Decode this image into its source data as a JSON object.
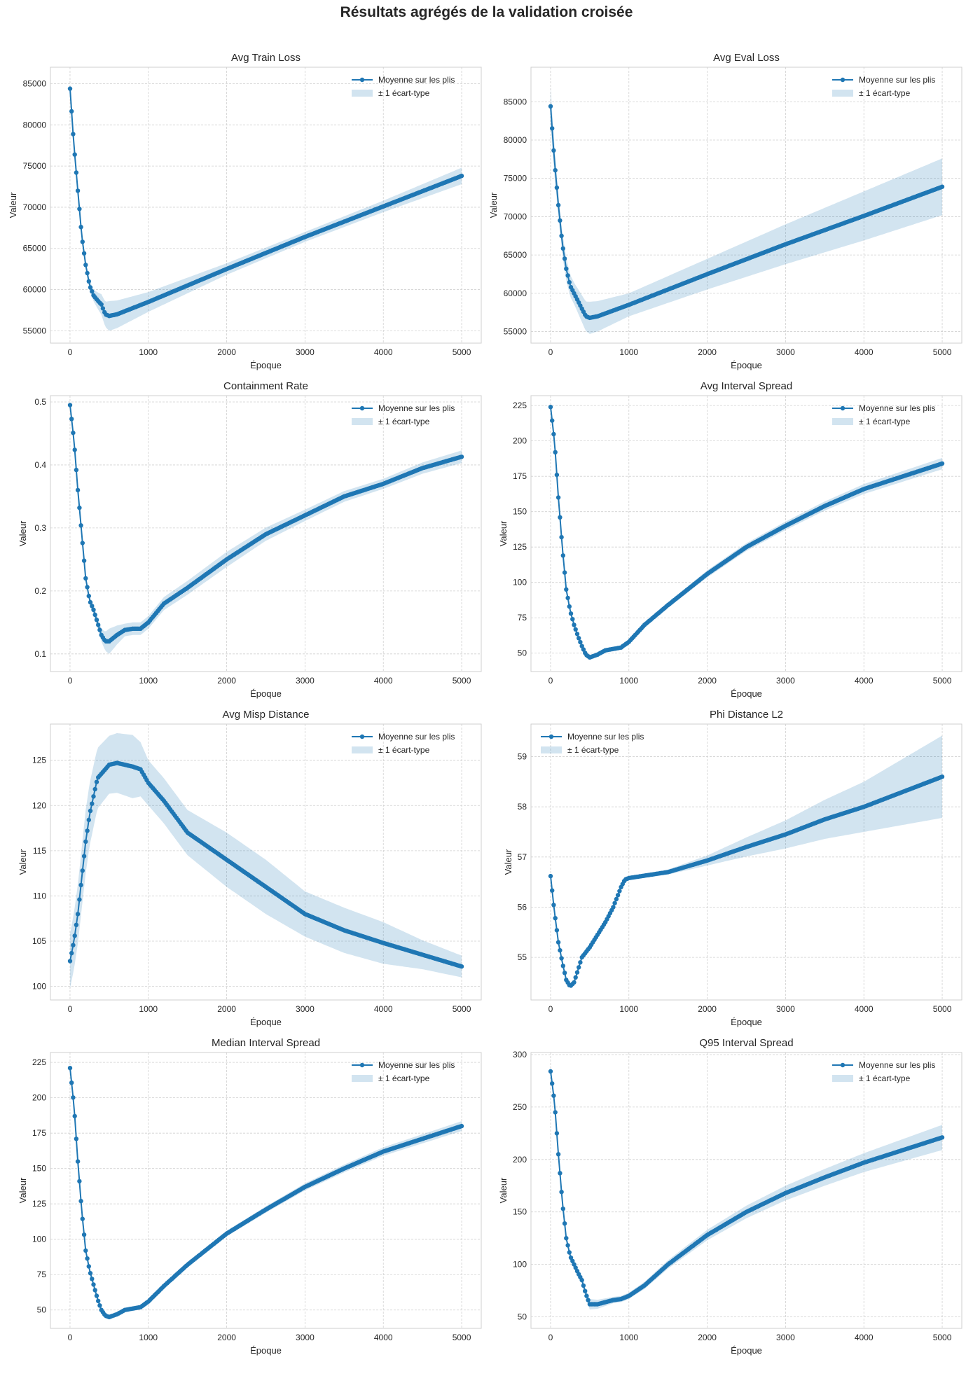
{
  "figure": {
    "title": "Résultats agrégés de la validation croisée"
  },
  "colors": {
    "mean_line": "#1f77b4",
    "std_band": "#1f77b4",
    "band_opacity": "0.2"
  },
  "chart_data": [
    {
      "type": "line",
      "title": "Avg Train Loss",
      "xlabel": "Époque",
      "ylabel": "Valeur",
      "xlim": [
        -250,
        5250
      ],
      "ylim": [
        53500,
        87000
      ],
      "xticks": [
        0,
        1000,
        2000,
        3000,
        4000,
        5000
      ],
      "yticks": [
        55000,
        60000,
        65000,
        70000,
        75000,
        80000,
        85000
      ],
      "legend_loc": "upper-right",
      "grid": true,
      "series": [
        {
          "name": "Moyenne sur les plis"
        },
        {
          "name": "± 1 écart-type"
        }
      ],
      "mean": [
        [
          0,
          84400
        ],
        [
          50,
          77500
        ],
        [
          100,
          72000
        ],
        [
          150,
          66500
        ],
        [
          200,
          63000
        ],
        [
          250,
          60500
        ],
        [
          300,
          59300
        ],
        [
          350,
          58700
        ],
        [
          400,
          58200
        ],
        [
          450,
          57000
        ],
        [
          500,
          56800
        ],
        [
          600,
          57000
        ],
        [
          1000,
          58500
        ],
        [
          2000,
          62500
        ],
        [
          3000,
          66400
        ],
        [
          4000,
          70100
        ],
        [
          5000,
          73800
        ]
      ],
      "std": [
        [
          0,
          0
        ],
        [
          100,
          300
        ],
        [
          300,
          700
        ],
        [
          500,
          1800
        ],
        [
          1000,
          1200
        ],
        [
          2000,
          700
        ],
        [
          3000,
          600
        ],
        [
          4000,
          700
        ],
        [
          5000,
          1000
        ]
      ]
    },
    {
      "type": "line",
      "title": "Avg Eval Loss",
      "xlabel": "Époque",
      "ylabel": "Valeur",
      "xlim": [
        -250,
        5250
      ],
      "ylim": [
        53500,
        89500
      ],
      "xticks": [
        0,
        1000,
        2000,
        3000,
        4000,
        5000
      ],
      "yticks": [
        55000,
        60000,
        65000,
        70000,
        75000,
        80000,
        85000
      ],
      "legend_loc": "upper-right",
      "grid": true,
      "series": [
        {
          "name": "Moyenne sur les plis"
        },
        {
          "name": "± 1 écart-type"
        }
      ],
      "mean": [
        [
          0,
          84400
        ],
        [
          50,
          77200
        ],
        [
          100,
          71500
        ],
        [
          150,
          66500
        ],
        [
          200,
          63200
        ],
        [
          250,
          61000
        ],
        [
          300,
          60000
        ],
        [
          350,
          59000
        ],
        [
          400,
          58000
        ],
        [
          450,
          57000
        ],
        [
          500,
          56800
        ],
        [
          600,
          57000
        ],
        [
          1000,
          58500
        ],
        [
          2000,
          62500
        ],
        [
          3000,
          66400
        ],
        [
          4000,
          70100
        ],
        [
          5000,
          73900
        ]
      ],
      "std": [
        [
          0,
          2500
        ],
        [
          100,
          1500
        ],
        [
          300,
          1400
        ],
        [
          500,
          2100
        ],
        [
          1000,
          1500
        ],
        [
          2000,
          2000
        ],
        [
          3000,
          2600
        ],
        [
          4000,
          3200
        ],
        [
          5000,
          3700
        ]
      ]
    },
    {
      "type": "line",
      "title": "Containment Rate",
      "xlabel": "Époque",
      "ylabel": "Valeur",
      "xlim": [
        -250,
        5250
      ],
      "ylim": [
        0.072,
        0.51
      ],
      "xticks": [
        0,
        1000,
        2000,
        3000,
        4000,
        5000
      ],
      "yticks": [
        0.1,
        0.2,
        0.3,
        0.4,
        0.5
      ],
      "legend_loc": "upper-right",
      "grid": true,
      "series": [
        {
          "name": "Moyenne sur les plis"
        },
        {
          "name": "± 1 écart-type"
        }
      ],
      "mean": [
        [
          0,
          0.495
        ],
        [
          50,
          0.44
        ],
        [
          100,
          0.36
        ],
        [
          150,
          0.29
        ],
        [
          200,
          0.22
        ],
        [
          250,
          0.185
        ],
        [
          300,
          0.17
        ],
        [
          350,
          0.15
        ],
        [
          400,
          0.13
        ],
        [
          450,
          0.12
        ],
        [
          500,
          0.12
        ],
        [
          600,
          0.13
        ],
        [
          700,
          0.138
        ],
        [
          800,
          0.14
        ],
        [
          900,
          0.14
        ],
        [
          1000,
          0.15
        ],
        [
          1200,
          0.18
        ],
        [
          1500,
          0.205
        ],
        [
          2000,
          0.25
        ],
        [
          2500,
          0.29
        ],
        [
          3000,
          0.32
        ],
        [
          3500,
          0.35
        ],
        [
          4000,
          0.37
        ],
        [
          4500,
          0.395
        ],
        [
          5000,
          0.413
        ]
      ],
      "std": [
        [
          0,
          0.003
        ],
        [
          200,
          0.005
        ],
        [
          400,
          0.01
        ],
        [
          500,
          0.02
        ],
        [
          700,
          0.01
        ],
        [
          1000,
          0.01
        ],
        [
          2000,
          0.012
        ],
        [
          3000,
          0.009
        ],
        [
          4000,
          0.008
        ],
        [
          5000,
          0.01
        ]
      ]
    },
    {
      "type": "line",
      "title": "Avg Interval Spread",
      "xlabel": "Époque",
      "ylabel": "Valeur",
      "xlim": [
        -250,
        5250
      ],
      "ylim": [
        37,
        232
      ],
      "xticks": [
        0,
        1000,
        2000,
        3000,
        4000,
        5000
      ],
      "yticks": [
        50,
        75,
        100,
        125,
        150,
        175,
        200,
        225
      ],
      "legend_loc": "upper-right",
      "grid": true,
      "series": [
        {
          "name": "Moyenne sur les plis"
        },
        {
          "name": "± 1 écart-type"
        }
      ],
      "mean": [
        [
          0,
          224
        ],
        [
          50,
          200
        ],
        [
          100,
          160
        ],
        [
          150,
          125
        ],
        [
          200,
          95
        ],
        [
          250,
          80
        ],
        [
          300,
          70
        ],
        [
          350,
          62
        ],
        [
          400,
          55
        ],
        [
          450,
          49
        ],
        [
          500,
          47
        ],
        [
          600,
          49
        ],
        [
          700,
          52
        ],
        [
          800,
          53
        ],
        [
          900,
          54
        ],
        [
          1000,
          58
        ],
        [
          1200,
          70
        ],
        [
          1500,
          84
        ],
        [
          2000,
          106
        ],
        [
          2500,
          125
        ],
        [
          3000,
          140
        ],
        [
          3500,
          154
        ],
        [
          4000,
          166
        ],
        [
          4500,
          175
        ],
        [
          5000,
          184
        ]
      ],
      "std": [
        [
          0,
          0.5
        ],
        [
          500,
          1
        ],
        [
          1000,
          1.5
        ],
        [
          2000,
          2.5
        ],
        [
          3000,
          3
        ],
        [
          4000,
          3.5
        ],
        [
          5000,
          4
        ]
      ]
    },
    {
      "type": "line",
      "title": "Avg Misp Distance",
      "xlabel": "Époque",
      "ylabel": "Valeur",
      "xlim": [
        -250,
        5250
      ],
      "ylim": [
        98.5,
        129
      ],
      "xticks": [
        0,
        1000,
        2000,
        3000,
        4000,
        5000
      ],
      "yticks": [
        100,
        105,
        110,
        115,
        120,
        125
      ],
      "legend_loc": "upper-right",
      "grid": true,
      "series": [
        {
          "name": "Moyenne sur les plis"
        },
        {
          "name": "± 1 écart-type"
        }
      ],
      "mean": [
        [
          0,
          102.8
        ],
        [
          50,
          105
        ],
        [
          100,
          108
        ],
        [
          150,
          112
        ],
        [
          200,
          116
        ],
        [
          250,
          119
        ],
        [
          300,
          121
        ],
        [
          350,
          123
        ],
        [
          400,
          123.5
        ],
        [
          450,
          124
        ],
        [
          500,
          124.5
        ],
        [
          600,
          124.7
        ],
        [
          700,
          124.5
        ],
        [
          800,
          124.3
        ],
        [
          900,
          124
        ],
        [
          1000,
          122.5
        ],
        [
          1200,
          120.5
        ],
        [
          1500,
          117
        ],
        [
          2000,
          114
        ],
        [
          2500,
          111
        ],
        [
          3000,
          108
        ],
        [
          3500,
          106.2
        ],
        [
          4000,
          104.8
        ],
        [
          4500,
          103.5
        ],
        [
          5000,
          102.2
        ]
      ],
      "std": [
        [
          0,
          3
        ],
        [
          200,
          3.5
        ],
        [
          500,
          3.2
        ],
        [
          800,
          3.5
        ],
        [
          1000,
          2.5
        ],
        [
          1500,
          2.5
        ],
        [
          2000,
          3
        ],
        [
          2500,
          3
        ],
        [
          3000,
          2.5
        ],
        [
          3500,
          2.5
        ],
        [
          4000,
          2.3
        ],
        [
          4500,
          1.6
        ],
        [
          5000,
          1.2
        ]
      ]
    },
    {
      "type": "line",
      "title": "Phi Distance L2",
      "xlabel": "Époque",
      "ylabel": "Valeur",
      "xlim": [
        -250,
        5250
      ],
      "ylim": [
        54.15,
        59.65
      ],
      "xticks": [
        0,
        1000,
        2000,
        3000,
        4000,
        5000
      ],
      "yticks": [
        55,
        56,
        57,
        58,
        59
      ],
      "legend_loc": "upper-left",
      "grid": true,
      "series": [
        {
          "name": "Moyenne sur les plis"
        },
        {
          "name": "± 1 écart-type"
        }
      ],
      "mean": [
        [
          0,
          56.62
        ],
        [
          50,
          55.9
        ],
        [
          100,
          55.3
        ],
        [
          150,
          54.9
        ],
        [
          200,
          54.55
        ],
        [
          250,
          54.42
        ],
        [
          300,
          54.5
        ],
        [
          350,
          54.75
        ],
        [
          400,
          55.0
        ],
        [
          500,
          55.2
        ],
        [
          600,
          55.45
        ],
        [
          700,
          55.7
        ],
        [
          800,
          56.0
        ],
        [
          900,
          56.4
        ],
        [
          950,
          56.55
        ],
        [
          1000,
          56.58
        ],
        [
          1500,
          56.7
        ],
        [
          2000,
          56.93
        ],
        [
          2500,
          57.2
        ],
        [
          3000,
          57.45
        ],
        [
          3500,
          57.75
        ],
        [
          4000,
          58.0
        ],
        [
          4500,
          58.3
        ],
        [
          5000,
          58.6
        ]
      ],
      "std": [
        [
          0,
          0.005
        ],
        [
          1000,
          0.01
        ],
        [
          1500,
          0.05
        ],
        [
          2000,
          0.1
        ],
        [
          3000,
          0.28
        ],
        [
          4000,
          0.5
        ],
        [
          5000,
          0.82
        ]
      ]
    },
    {
      "type": "line",
      "title": "Median Interval Spread",
      "xlabel": "Époque",
      "ylabel": "Valeur",
      "xlim": [
        -250,
        5250
      ],
      "ylim": [
        37,
        232
      ],
      "xticks": [
        0,
        1000,
        2000,
        3000,
        4000,
        5000
      ],
      "yticks": [
        50,
        75,
        100,
        125,
        150,
        175,
        200,
        225
      ],
      "legend_loc": "upper-right",
      "grid": true,
      "series": [
        {
          "name": "Moyenne sur les plis"
        },
        {
          "name": "± 1 écart-type"
        }
      ],
      "mean": [
        [
          0,
          221
        ],
        [
          50,
          195
        ],
        [
          100,
          155
        ],
        [
          150,
          120
        ],
        [
          200,
          92
        ],
        [
          250,
          78
        ],
        [
          300,
          68
        ],
        [
          350,
          58
        ],
        [
          400,
          50
        ],
        [
          450,
          46
        ],
        [
          500,
          45
        ],
        [
          600,
          47
        ],
        [
          700,
          50
        ],
        [
          800,
          51
        ],
        [
          900,
          52
        ],
        [
          1000,
          56
        ],
        [
          1200,
          67
        ],
        [
          1500,
          82
        ],
        [
          2000,
          104
        ],
        [
          2500,
          121
        ],
        [
          3000,
          137
        ],
        [
          3500,
          150
        ],
        [
          4000,
          162
        ],
        [
          4500,
          171
        ],
        [
          5000,
          180
        ]
      ],
      "std": [
        [
          0,
          0.5
        ],
        [
          500,
          1
        ],
        [
          1000,
          1.5
        ],
        [
          2000,
          2
        ],
        [
          3000,
          2.5
        ],
        [
          4000,
          3
        ],
        [
          5000,
          3.5
        ]
      ]
    },
    {
      "type": "line",
      "title": "Q95 Interval Spread",
      "xlabel": "Époque",
      "ylabel": "Valeur",
      "xlim": [
        -250,
        5250
      ],
      "ylim": [
        39,
        302
      ],
      "xticks": [
        0,
        1000,
        2000,
        3000,
        4000,
        5000
      ],
      "yticks": [
        50,
        100,
        150,
        200,
        250,
        300
      ],
      "legend_loc": "upper-right",
      "grid": true,
      "series": [
        {
          "name": "Moyenne sur les plis"
        },
        {
          "name": "± 1 écart-type"
        }
      ],
      "mean": [
        [
          0,
          284
        ],
        [
          50,
          255
        ],
        [
          100,
          205
        ],
        [
          150,
          160
        ],
        [
          200,
          125
        ],
        [
          250,
          108
        ],
        [
          300,
          100
        ],
        [
          350,
          92
        ],
        [
          400,
          85
        ],
        [
          450,
          72
        ],
        [
          500,
          62
        ],
        [
          600,
          62
        ],
        [
          700,
          64
        ],
        [
          800,
          66
        ],
        [
          900,
          67
        ],
        [
          1000,
          70
        ],
        [
          1200,
          80
        ],
        [
          1500,
          100
        ],
        [
          2000,
          128
        ],
        [
          2500,
          150
        ],
        [
          3000,
          168
        ],
        [
          3500,
          183
        ],
        [
          4000,
          197
        ],
        [
          4500,
          209
        ],
        [
          5000,
          221
        ]
      ],
      "std": [
        [
          0,
          1
        ],
        [
          400,
          3
        ],
        [
          500,
          5
        ],
        [
          800,
          3
        ],
        [
          1000,
          3
        ],
        [
          2000,
          5
        ],
        [
          3000,
          7
        ],
        [
          4000,
          9
        ],
        [
          5000,
          12
        ]
      ]
    }
  ]
}
